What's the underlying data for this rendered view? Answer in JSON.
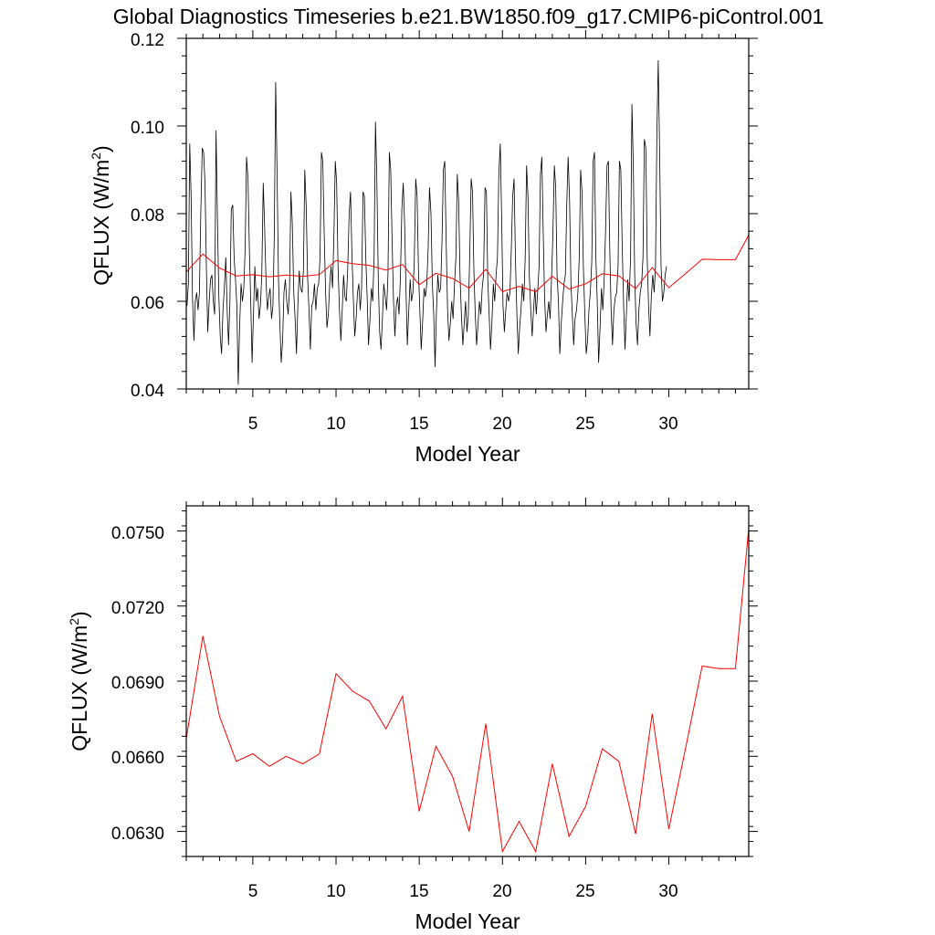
{
  "title": "Global Diagnostics Timeseries b.e21.BW1850.f09_g17.CMIP6-piControl.001",
  "chart_data": [
    {
      "type": "line",
      "xlabel": "Model Year",
      "ylabel_main": "QFLUX (W/m",
      "ylabel_sup": "2",
      "ylabel_end": ")",
      "xlim": [
        1,
        34.8
      ],
      "ylim": [
        0.04,
        0.12
      ],
      "xticks": [
        "5",
        "10",
        "15",
        "20",
        "25",
        "30"
      ],
      "yticks": [
        "0.04",
        "0.06",
        "0.08",
        "0.10",
        "0.12"
      ],
      "series": [
        {
          "color": "#000000",
          "x_start": 1.0417,
          "x_step": 0.0833,
          "values": [
            0.059,
            0.064,
            0.096,
            0.084,
            0.061,
            0.051,
            0.06,
            0.062,
            0.058,
            0.062,
            0.08,
            0.095,
            0.094,
            0.087,
            0.068,
            0.053,
            0.06,
            0.065,
            0.066,
            0.06,
            0.057,
            0.099,
            0.078,
            0.061,
            0.052,
            0.048,
            0.058,
            0.063,
            0.07,
            0.058,
            0.05,
            0.06,
            0.081,
            0.082,
            0.07,
            0.065,
            0.059,
            0.041,
            0.054,
            0.064,
            0.06,
            0.063,
            0.072,
            0.093,
            0.088,
            0.072,
            0.06,
            0.046,
            0.057,
            0.068,
            0.06,
            0.063,
            0.056,
            0.059,
            0.066,
            0.087,
            0.077,
            0.065,
            0.058,
            0.061,
            0.063,
            0.056,
            0.059,
            0.075,
            0.11,
            0.09,
            0.065,
            0.055,
            0.046,
            0.051,
            0.062,
            0.065,
            0.06,
            0.057,
            0.063,
            0.085,
            0.078,
            0.062,
            0.056,
            0.048,
            0.059,
            0.067,
            0.063,
            0.062,
            0.067,
            0.09,
            0.082,
            0.066,
            0.058,
            0.049,
            0.059,
            0.06,
            0.064,
            0.058,
            0.063,
            0.064,
            0.07,
            0.094,
            0.092,
            0.075,
            0.062,
            0.054,
            0.057,
            0.064,
            0.068,
            0.063,
            0.075,
            0.092,
            0.087,
            0.068,
            0.058,
            0.051,
            0.058,
            0.066,
            0.061,
            0.06,
            0.068,
            0.08,
            0.085,
            0.071,
            0.061,
            0.052,
            0.056,
            0.062,
            0.064,
            0.058,
            0.063,
            0.085,
            0.084,
            0.07,
            0.061,
            0.05,
            0.056,
            0.063,
            0.06,
            0.07,
            0.101,
            0.088,
            0.065,
            0.053,
            0.049,
            0.056,
            0.064,
            0.061,
            0.058,
            0.066,
            0.094,
            0.09,
            0.074,
            0.06,
            0.052,
            0.059,
            0.061,
            0.057,
            0.066,
            0.081,
            0.087,
            0.078,
            0.063,
            0.05,
            0.058,
            0.065,
            0.06,
            0.062,
            0.069,
            0.088,
            0.084,
            0.067,
            0.058,
            0.049,
            0.055,
            0.063,
            0.061,
            0.064,
            0.072,
            0.086,
            0.08,
            0.064,
            0.057,
            0.045,
            0.058,
            0.066,
            0.062,
            0.063,
            0.074,
            0.09,
            0.092,
            0.073,
            0.058,
            0.051,
            0.055,
            0.06,
            0.056,
            0.064,
            0.07,
            0.089,
            0.083,
            0.066,
            0.057,
            0.05,
            0.055,
            0.06,
            0.053,
            0.057,
            0.071,
            0.088,
            0.085,
            0.067,
            0.057,
            0.05,
            0.055,
            0.06,
            0.057,
            0.063,
            0.066,
            0.086,
            0.085,
            0.065,
            0.057,
            0.049,
            0.055,
            0.064,
            0.06,
            0.066,
            0.07,
            0.089,
            0.096,
            0.079,
            0.059,
            0.053,
            0.058,
            0.062,
            0.06,
            0.062,
            0.072,
            0.084,
            0.088,
            0.069,
            0.057,
            0.048,
            0.054,
            0.058,
            0.064,
            0.06,
            0.07,
            0.091,
            0.084,
            0.066,
            0.058,
            0.052,
            0.058,
            0.063,
            0.057,
            0.062,
            0.068,
            0.089,
            0.093,
            0.076,
            0.061,
            0.053,
            0.057,
            0.06,
            0.056,
            0.065,
            0.075,
            0.091,
            0.086,
            0.066,
            0.06,
            0.048,
            0.055,
            0.06,
            0.064,
            0.066,
            0.082,
            0.093,
            0.083,
            0.064,
            0.057,
            0.05,
            0.056,
            0.058,
            0.062,
            0.07,
            0.09,
            0.085,
            0.068,
            0.057,
            0.048,
            0.051,
            0.058,
            0.062,
            0.069,
            0.092,
            0.094,
            0.07,
            0.06,
            0.046,
            0.054,
            0.063,
            0.058,
            0.065,
            0.076,
            0.091,
            0.092,
            0.072,
            0.058,
            0.05,
            0.058,
            0.061,
            0.062,
            0.068,
            0.092,
            0.09,
            0.072,
            0.059,
            0.049,
            0.057,
            0.065,
            0.06,
            0.07,
            0.105,
            0.091,
            0.066,
            0.055,
            0.05,
            0.058,
            0.062,
            0.064,
            0.07,
            0.097,
            0.095,
            0.07,
            0.059,
            0.052,
            0.061,
            0.066,
            0.062,
            0.068,
            0.098,
            0.115,
            0.094,
            0.068,
            0.06,
            0.062,
            0.066,
            0.068
          ]
        },
        {
          "color": "#ff0000",
          "x": [
            1,
            2,
            3,
            4,
            5,
            6,
            7,
            8,
            9,
            10,
            11,
            12,
            13,
            14,
            15,
            16,
            17,
            18,
            19,
            20,
            21,
            22,
            23,
            24,
            25,
            26,
            27,
            28,
            29,
            30,
            31,
            32,
            33,
            34,
            34.8
          ],
          "values": [
            0.0667,
            0.0708,
            0.0676,
            0.0658,
            0.0661,
            0.0656,
            0.066,
            0.0657,
            0.0661,
            0.0693,
            0.0686,
            0.0682,
            0.0671,
            0.0684,
            0.0638,
            0.0664,
            0.0652,
            0.063,
            0.0673,
            0.0622,
            0.0634,
            0.0622,
            0.0657,
            0.0628,
            0.064,
            0.0663,
            0.0658,
            0.0629,
            0.0677,
            0.0631,
            0.0663,
            0.0696,
            0.0695,
            0.0695,
            0.0751
          ]
        }
      ]
    },
    {
      "type": "line",
      "xlabel": "Model Year",
      "ylabel_main": "QFLUX (W/m",
      "ylabel_sup": "2",
      "ylabel_end": ")",
      "xlim": [
        1,
        34.8
      ],
      "ylim": [
        0.062,
        0.076
      ],
      "xticks": [
        "5",
        "10",
        "15",
        "20",
        "25",
        "30"
      ],
      "yticks": [
        "0.0630",
        "0.0660",
        "0.0690",
        "0.0720",
        "0.0750"
      ],
      "series": [
        {
          "color": "#ff0000",
          "x": [
            1,
            2,
            3,
            4,
            5,
            6,
            7,
            8,
            9,
            10,
            11,
            12,
            13,
            14,
            15,
            16,
            17,
            18,
            19,
            20,
            21,
            22,
            23,
            24,
            25,
            26,
            27,
            28,
            29,
            30,
            31,
            32,
            33,
            34,
            34.8
          ],
          "values": [
            0.0667,
            0.0708,
            0.0676,
            0.0658,
            0.0661,
            0.0656,
            0.066,
            0.0657,
            0.0661,
            0.0693,
            0.0686,
            0.0682,
            0.0671,
            0.0684,
            0.0638,
            0.0664,
            0.0652,
            0.063,
            0.0673,
            0.0622,
            0.0634,
            0.0622,
            0.0657,
            0.0628,
            0.064,
            0.0663,
            0.0658,
            0.0629,
            0.0677,
            0.0631,
            0.0663,
            0.0696,
            0.0695,
            0.0695,
            0.0751
          ]
        }
      ]
    }
  ]
}
